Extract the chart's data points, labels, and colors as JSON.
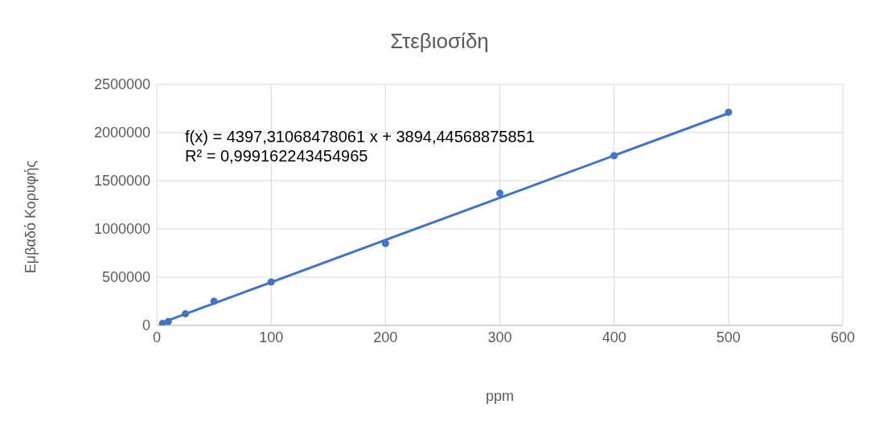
{
  "chart_data": {
    "type": "scatter",
    "title": "Στεβιοσίδη",
    "xlabel": "ppm",
    "ylabel": "Εμβαδό Κορυφής",
    "series": [
      {
        "color": "#4472c4",
        "marker": "circle",
        "x": [
          5,
          10,
          25,
          50,
          100,
          200,
          300,
          400,
          500
        ],
        "values": [
          20000,
          40000,
          120000,
          250000,
          450000,
          850000,
          1370000,
          1760000,
          2210000
        ]
      },
      {
        "type": "line",
        "color": "#4472c4",
        "marker": "none",
        "line_style": "solid",
        "x": [
          5,
          500
        ],
        "values": [
          30000,
          2200000
        ]
      }
    ],
    "xlim": [
      0,
      600
    ],
    "xticks": [
      0,
      100,
      200,
      300,
      400,
      500,
      600
    ],
    "ylim": [
      0,
      2500000
    ],
    "yticks": [
      0,
      500000,
      1000000,
      1500000,
      2000000,
      2500000
    ],
    "grid": true,
    "legend": false,
    "annotations": [
      "f(x) = 4397,31068478061 x + 3894,44568875851",
      "R² = 0,999162243454965"
    ]
  }
}
